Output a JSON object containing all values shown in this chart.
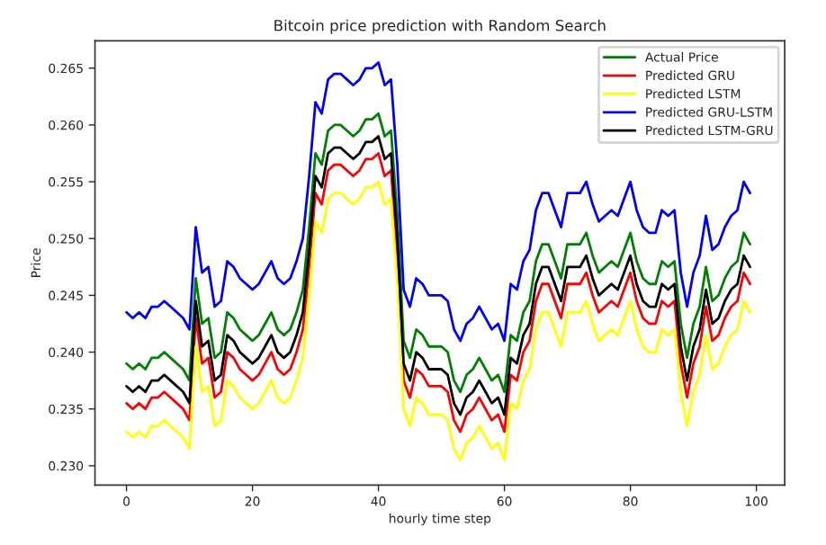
{
  "chart_data": {
    "type": "line",
    "title": "Bitcoin price prediction with Random Search",
    "xlabel": "hourly time step",
    "ylabel": "Price",
    "x": [
      0,
      1,
      2,
      3,
      4,
      5,
      6,
      7,
      8,
      9,
      10,
      11,
      12,
      13,
      14,
      15,
      16,
      17,
      18,
      19,
      20,
      21,
      22,
      23,
      24,
      25,
      26,
      27,
      28,
      29,
      30,
      31,
      32,
      33,
      34,
      35,
      36,
      37,
      38,
      39,
      40,
      41,
      42,
      43,
      44,
      45,
      46,
      47,
      48,
      49,
      50,
      51,
      52,
      53,
      54,
      55,
      56,
      57,
      58,
      59,
      60,
      61,
      62,
      63,
      64,
      65,
      66,
      67,
      68,
      69,
      70,
      71,
      72,
      73,
      74,
      75,
      76,
      77,
      78,
      79,
      80,
      81,
      82,
      83,
      84,
      85,
      86,
      87,
      88,
      89,
      90,
      91,
      92,
      93,
      94,
      95,
      96,
      97,
      98,
      99
    ],
    "series": [
      {
        "name": "Actual Price",
        "color": "#008000",
        "values": [
          0.239,
          0.2385,
          0.239,
          0.2385,
          0.2395,
          0.2395,
          0.24,
          0.2395,
          0.239,
          0.2385,
          0.2375,
          0.2465,
          0.2425,
          0.243,
          0.2395,
          0.24,
          0.2435,
          0.243,
          0.242,
          0.2415,
          0.241,
          0.2415,
          0.2425,
          0.2435,
          0.242,
          0.2415,
          0.242,
          0.2435,
          0.2455,
          0.251,
          0.2575,
          0.2565,
          0.2595,
          0.26,
          0.26,
          0.2595,
          0.259,
          0.2595,
          0.2605,
          0.2605,
          0.261,
          0.259,
          0.2595,
          0.252,
          0.241,
          0.2395,
          0.242,
          0.2415,
          0.2405,
          0.2405,
          0.2405,
          0.24,
          0.2375,
          0.2365,
          0.238,
          0.2385,
          0.2395,
          0.2385,
          0.2375,
          0.238,
          0.2365,
          0.2415,
          0.241,
          0.2435,
          0.2445,
          0.248,
          0.2495,
          0.2495,
          0.248,
          0.2465,
          0.2495,
          0.2495,
          0.2495,
          0.2505,
          0.2485,
          0.247,
          0.2475,
          0.248,
          0.2475,
          0.249,
          0.2505,
          0.248,
          0.2465,
          0.246,
          0.246,
          0.248,
          0.2475,
          0.248,
          0.2425,
          0.2395,
          0.2425,
          0.244,
          0.2475,
          0.2445,
          0.245,
          0.2465,
          0.2475,
          0.248,
          0.2505,
          0.2495
        ]
      },
      {
        "name": "Predicted GRU",
        "color": "#ff0000",
        "values": [
          0.2355,
          0.235,
          0.2355,
          0.235,
          0.236,
          0.236,
          0.2365,
          0.236,
          0.2355,
          0.235,
          0.234,
          0.243,
          0.239,
          0.2395,
          0.236,
          0.2365,
          0.24,
          0.2395,
          0.2385,
          0.238,
          0.2375,
          0.238,
          0.239,
          0.24,
          0.2385,
          0.238,
          0.2385,
          0.24,
          0.242,
          0.2475,
          0.254,
          0.253,
          0.256,
          0.2565,
          0.2565,
          0.256,
          0.2555,
          0.256,
          0.257,
          0.257,
          0.2575,
          0.2555,
          0.256,
          0.2485,
          0.2375,
          0.236,
          0.2385,
          0.238,
          0.237,
          0.237,
          0.237,
          0.2365,
          0.234,
          0.233,
          0.2345,
          0.235,
          0.236,
          0.235,
          0.234,
          0.2345,
          0.233,
          0.238,
          0.2375,
          0.24,
          0.241,
          0.2445,
          0.246,
          0.246,
          0.2445,
          0.243,
          0.246,
          0.246,
          0.246,
          0.247,
          0.245,
          0.2435,
          0.244,
          0.2445,
          0.244,
          0.2455,
          0.247,
          0.2445,
          0.243,
          0.2425,
          0.2425,
          0.2445,
          0.244,
          0.2445,
          0.239,
          0.236,
          0.239,
          0.2405,
          0.244,
          0.241,
          0.2415,
          0.243,
          0.244,
          0.2445,
          0.247,
          0.246
        ]
      },
      {
        "name": "Predicted LSTM",
        "color": "#ffff00",
        "values": [
          0.233,
          0.2325,
          0.233,
          0.2325,
          0.2335,
          0.2335,
          0.234,
          0.2335,
          0.233,
          0.2325,
          0.2315,
          0.2405,
          0.2365,
          0.237,
          0.2335,
          0.234,
          0.2375,
          0.237,
          0.236,
          0.2355,
          0.235,
          0.2355,
          0.2365,
          0.2375,
          0.236,
          0.2355,
          0.236,
          0.2375,
          0.2395,
          0.245,
          0.2515,
          0.2505,
          0.2535,
          0.254,
          0.254,
          0.2535,
          0.253,
          0.2535,
          0.2545,
          0.2545,
          0.255,
          0.253,
          0.2535,
          0.246,
          0.235,
          0.2335,
          0.236,
          0.2355,
          0.2345,
          0.2345,
          0.2345,
          0.234,
          0.2315,
          0.2305,
          0.232,
          0.2325,
          0.2335,
          0.2325,
          0.2315,
          0.232,
          0.2305,
          0.2355,
          0.235,
          0.2375,
          0.2385,
          0.242,
          0.2435,
          0.2435,
          0.242,
          0.2405,
          0.2435,
          0.2435,
          0.2435,
          0.2445,
          0.2425,
          0.241,
          0.2415,
          0.242,
          0.2415,
          0.243,
          0.2445,
          0.242,
          0.2405,
          0.24,
          0.24,
          0.242,
          0.2415,
          0.242,
          0.2365,
          0.2335,
          0.2365,
          0.238,
          0.2415,
          0.2385,
          0.239,
          0.2405,
          0.2415,
          0.242,
          0.2445,
          0.2435
        ]
      },
      {
        "name": "Predicted GRU-LSTM",
        "color": "#0000ff",
        "values": [
          0.2435,
          0.243,
          0.2435,
          0.243,
          0.244,
          0.244,
          0.2445,
          0.244,
          0.2435,
          0.243,
          0.242,
          0.251,
          0.247,
          0.2475,
          0.244,
          0.2445,
          0.248,
          0.2475,
          0.2465,
          0.246,
          0.2455,
          0.246,
          0.247,
          0.248,
          0.2465,
          0.246,
          0.2465,
          0.248,
          0.25,
          0.2555,
          0.262,
          0.261,
          0.264,
          0.2645,
          0.2645,
          0.264,
          0.2635,
          0.264,
          0.265,
          0.265,
          0.2655,
          0.2635,
          0.264,
          0.2565,
          0.2455,
          0.244,
          0.2465,
          0.246,
          0.245,
          0.245,
          0.245,
          0.2445,
          0.242,
          0.241,
          0.2425,
          0.243,
          0.244,
          0.243,
          0.242,
          0.2425,
          0.241,
          0.246,
          0.2455,
          0.248,
          0.249,
          0.2525,
          0.254,
          0.254,
          0.2525,
          0.251,
          0.254,
          0.254,
          0.254,
          0.255,
          0.253,
          0.2515,
          0.252,
          0.2525,
          0.252,
          0.2535,
          0.255,
          0.2525,
          0.251,
          0.2505,
          0.2505,
          0.2525,
          0.252,
          0.2525,
          0.247,
          0.244,
          0.247,
          0.2485,
          0.252,
          0.249,
          0.2495,
          0.251,
          0.252,
          0.2525,
          0.255,
          0.254
        ]
      },
      {
        "name": "Predicted LSTM-GRU",
        "color": "#000000",
        "values": [
          0.237,
          0.2365,
          0.237,
          0.2365,
          0.2375,
          0.2375,
          0.238,
          0.2375,
          0.237,
          0.2365,
          0.2355,
          0.2445,
          0.2405,
          0.241,
          0.2375,
          0.238,
          0.2415,
          0.241,
          0.24,
          0.2395,
          0.239,
          0.2395,
          0.2405,
          0.2415,
          0.24,
          0.2395,
          0.24,
          0.2415,
          0.2435,
          0.249,
          0.2555,
          0.2545,
          0.2575,
          0.258,
          0.258,
          0.2575,
          0.257,
          0.2575,
          0.2585,
          0.2585,
          0.259,
          0.257,
          0.2575,
          0.25,
          0.239,
          0.2375,
          0.24,
          0.2395,
          0.2385,
          0.2385,
          0.2385,
          0.238,
          0.2355,
          0.2345,
          0.236,
          0.2365,
          0.2375,
          0.2365,
          0.2355,
          0.236,
          0.2345,
          0.2395,
          0.239,
          0.2415,
          0.2425,
          0.246,
          0.2475,
          0.2475,
          0.246,
          0.2445,
          0.2475,
          0.2475,
          0.2475,
          0.2485,
          0.2465,
          0.245,
          0.2455,
          0.246,
          0.2455,
          0.247,
          0.2485,
          0.246,
          0.2445,
          0.244,
          0.244,
          0.246,
          0.2455,
          0.246,
          0.2405,
          0.2375,
          0.2405,
          0.242,
          0.2455,
          0.2425,
          0.243,
          0.2445,
          0.2455,
          0.246,
          0.2485,
          0.2475
        ]
      }
    ],
    "xlim": [
      -5,
      104.5
    ],
    "ylim": [
      0.2283,
      0.2674
    ],
    "xticks": [
      0,
      20,
      40,
      60,
      80,
      100
    ],
    "yticks": [
      {
        "value": 0.23,
        "label": "0.230"
      },
      {
        "value": 0.235,
        "label": "0.235"
      },
      {
        "value": 0.24,
        "label": "0.240"
      },
      {
        "value": 0.245,
        "label": "0.245"
      },
      {
        "value": 0.25,
        "label": "0.250"
      },
      {
        "value": 0.255,
        "label": "0.255"
      },
      {
        "value": 0.26,
        "label": "0.260"
      },
      {
        "value": 0.265,
        "label": "0.265"
      }
    ],
    "grid": false,
    "legend": "top right",
    "marker": "none",
    "line_style": "solid"
  }
}
